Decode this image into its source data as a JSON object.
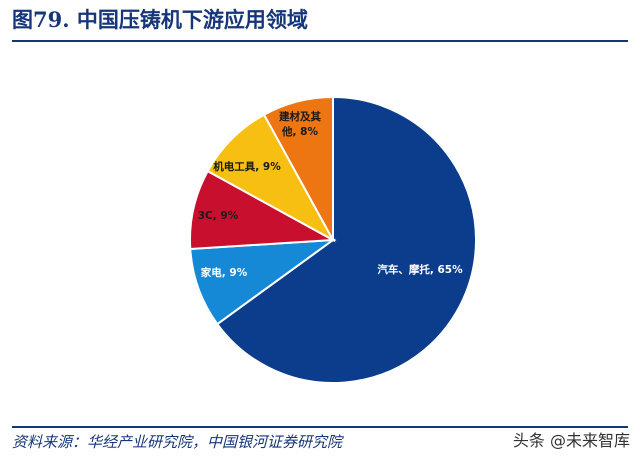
{
  "title": "图79. 中国压铸机下游应用领域",
  "source": "资料来源：华经产业研究院，中国银河证券研究院",
  "watermark": "头条 @未来智库",
  "chart_data": {
    "type": "pie",
    "slices": [
      {
        "label": "汽车、摩托",
        "value": 65,
        "color": "#0b3d8c",
        "label_color": "#ffffff",
        "text": "汽车、摩托, 65%"
      },
      {
        "label": "家电",
        "value": 9,
        "color": "#1589d6",
        "label_color": "#ffffff",
        "text": "家电, 9%"
      },
      {
        "label": "3C",
        "value": 9,
        "color": "#c8102e",
        "label_color": "#1a1a1a",
        "text": "3C, 9%"
      },
      {
        "label": "机电工具",
        "value": 9,
        "color": "#f6bf12",
        "label_color": "#1a1a1a",
        "text": "机电工具, 9%"
      },
      {
        "label": "建材及其他",
        "value": 8,
        "color": "#ed7512",
        "label_color": "#1a1a1a",
        "text_lines": [
          "建材及其",
          "他, 8%"
        ]
      }
    ],
    "start_angle_deg": 0,
    "direction": "clockwise",
    "legend": "none"
  }
}
